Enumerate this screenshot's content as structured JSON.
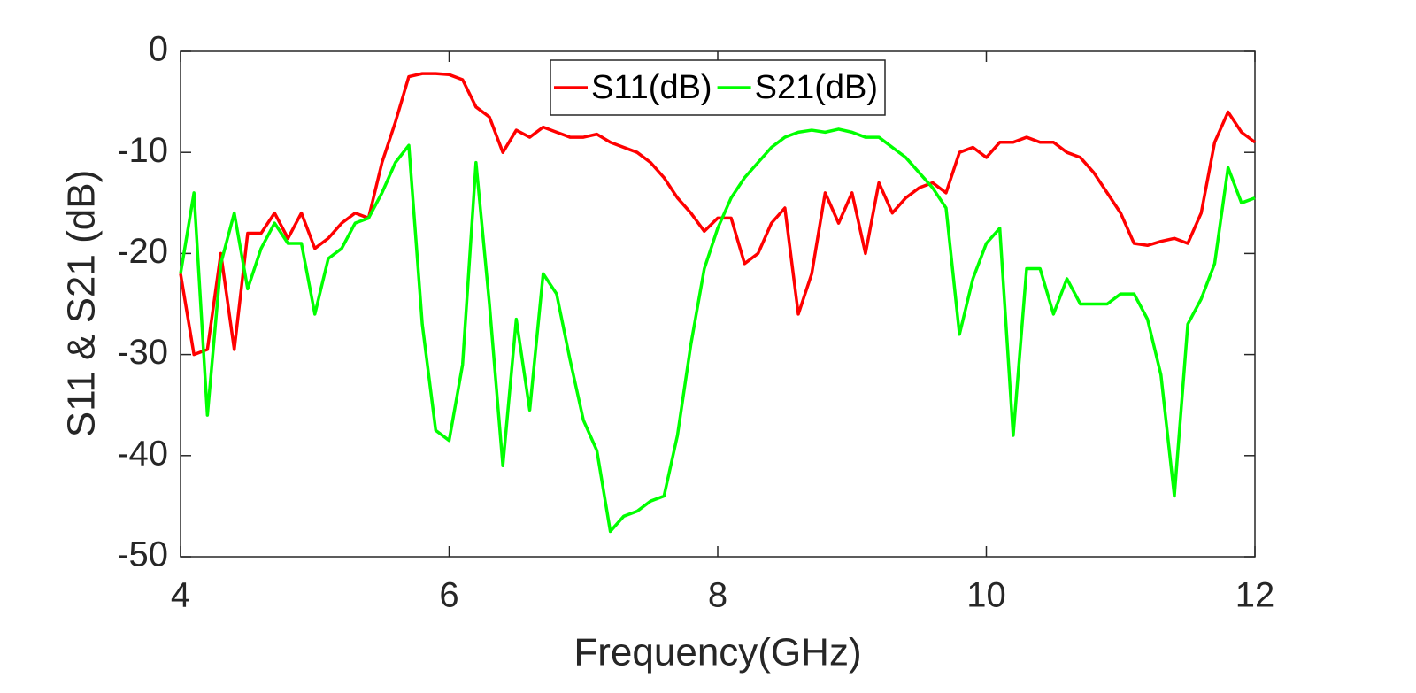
{
  "chart_data": {
    "type": "line",
    "xlabel": "Frequency(GHz)",
    "ylabel": "S11 & S21 (dB)",
    "x": [
      4.0,
      4.1,
      4.2,
      4.3,
      4.4,
      4.5,
      4.6,
      4.7,
      4.8,
      4.9,
      5.0,
      5.1,
      5.2,
      5.3,
      5.4,
      5.5,
      5.6,
      5.7,
      5.8,
      5.9,
      6.0,
      6.1,
      6.2,
      6.3,
      6.4,
      6.5,
      6.6,
      6.7,
      6.8,
      6.9,
      7.0,
      7.1,
      7.2,
      7.3,
      7.4,
      7.5,
      7.6,
      7.7,
      7.8,
      7.9,
      8.0,
      8.1,
      8.2,
      8.3,
      8.4,
      8.5,
      8.6,
      8.7,
      8.8,
      8.9,
      9.0,
      9.1,
      9.2,
      9.3,
      9.4,
      9.5,
      9.6,
      9.7,
      9.8,
      9.9,
      10.0,
      10.1,
      10.2,
      10.3,
      10.4,
      10.5,
      10.6,
      10.7,
      10.8,
      10.9,
      11.0,
      11.1,
      11.2,
      11.3,
      11.4,
      11.5,
      11.6,
      11.7,
      11.8,
      11.9,
      12.0
    ],
    "series": [
      {
        "name": "S11(dB)",
        "color": "#ff0000",
        "values": [
          -22,
          -30,
          -29.5,
          -20,
          -29.5,
          -18,
          -18,
          -16,
          -18.5,
          -16,
          -19.5,
          -18.5,
          -17,
          -16,
          -16.5,
          -11,
          -7,
          -2.5,
          -2.2,
          -2.2,
          -2.3,
          -2.8,
          -5.5,
          -6.5,
          -10,
          -7.8,
          -8.5,
          -7.5,
          -8,
          -8.5,
          -8.5,
          -8.2,
          -9,
          -9.5,
          -10,
          -11,
          -12.5,
          -14.5,
          -16,
          -17.8,
          -16.5,
          -16.5,
          -21,
          -20,
          -17,
          -15.5,
          -26,
          -22,
          -14,
          -17,
          -14,
          -20,
          -13,
          -16,
          -14.5,
          -13.5,
          -13,
          -14,
          -10,
          -9.5,
          -10.5,
          -9,
          -9,
          -8.5,
          -9,
          -9,
          -10,
          -10.5,
          -12,
          -14,
          -16,
          -19,
          -19.2,
          -18.8,
          -18.5,
          -19,
          -16,
          -9,
          -6,
          -8,
          -9
        ]
      },
      {
        "name": "S21(dB)",
        "color": "#00ff00",
        "values": [
          -22,
          -14,
          -36,
          -21,
          -16,
          -23.5,
          -19.5,
          -17,
          -19,
          -19,
          -26,
          -20.5,
          -19.5,
          -17,
          -16.5,
          -14,
          -11,
          -9.3,
          -27,
          -37.5,
          -38.5,
          -31,
          -11,
          -25,
          -41,
          -26.5,
          -35.5,
          -22,
          -24,
          -30.5,
          -36.5,
          -39.5,
          -47.5,
          -46,
          -45.5,
          -44.5,
          -44,
          -38,
          -29,
          -21.5,
          -17.5,
          -14.5,
          -12.5,
          -11,
          -9.5,
          -8.5,
          -8,
          -7.8,
          -8,
          -7.7,
          -8,
          -8.5,
          -8.5,
          -9.5,
          -10.5,
          -12,
          -13.5,
          -15.5,
          -28,
          -22.5,
          -19,
          -17.5,
          -38,
          -21.5,
          -21.5,
          -26,
          -22.5,
          -25,
          -25,
          -25,
          -24,
          -24,
          -26.5,
          -32,
          -44,
          -27,
          -24.5,
          -21,
          -11.5,
          -15,
          -14.5
        ]
      }
    ],
    "xlim": [
      4,
      12
    ],
    "xticks": [
      4,
      6,
      8,
      10,
      12
    ],
    "ylim": [
      -50,
      0
    ],
    "yticks": [
      -50,
      -40,
      -30,
      -20,
      -10,
      0
    ],
    "grid": false,
    "legend": "top"
  }
}
